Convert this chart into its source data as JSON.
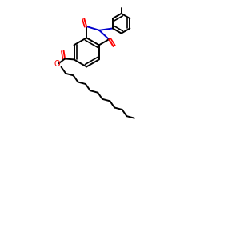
{
  "bg_color": "#ffffff",
  "bond_color": "#000000",
  "o_color": "#ff0000",
  "n_color": "#0000cc",
  "lw": 1.4,
  "fig_w": 3.0,
  "fig_h": 3.0,
  "dpi": 100
}
